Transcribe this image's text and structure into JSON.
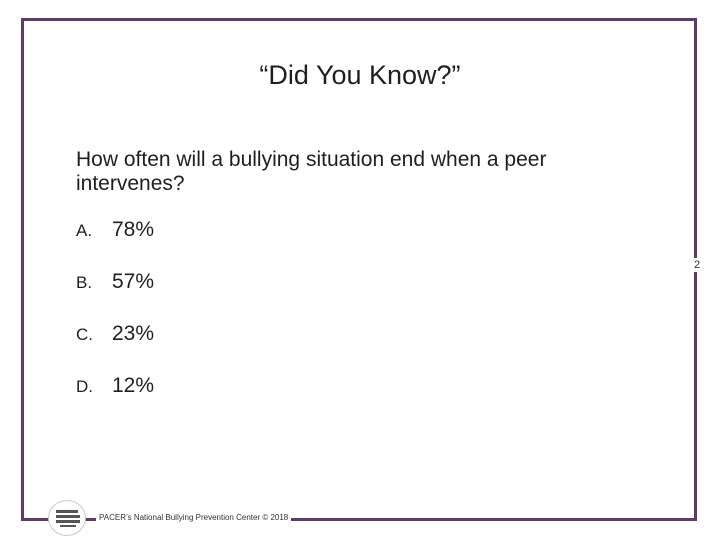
{
  "slide": {
    "title": "“Did You Know?”",
    "question": "How often will a bullying situation end when a peer intervenes?",
    "options": [
      {
        "letter": "A.",
        "text": "78%"
      },
      {
        "letter": "B.",
        "text": "57%"
      },
      {
        "letter": "C.",
        "text": "23%"
      },
      {
        "letter": "D.",
        "text": "12%"
      }
    ],
    "slide_number": "2",
    "footer": "PACER’s National Bullying Prevention Center © 2018"
  },
  "colors": {
    "frame": "#5e3a6e",
    "text": "#1f1f1f"
  }
}
